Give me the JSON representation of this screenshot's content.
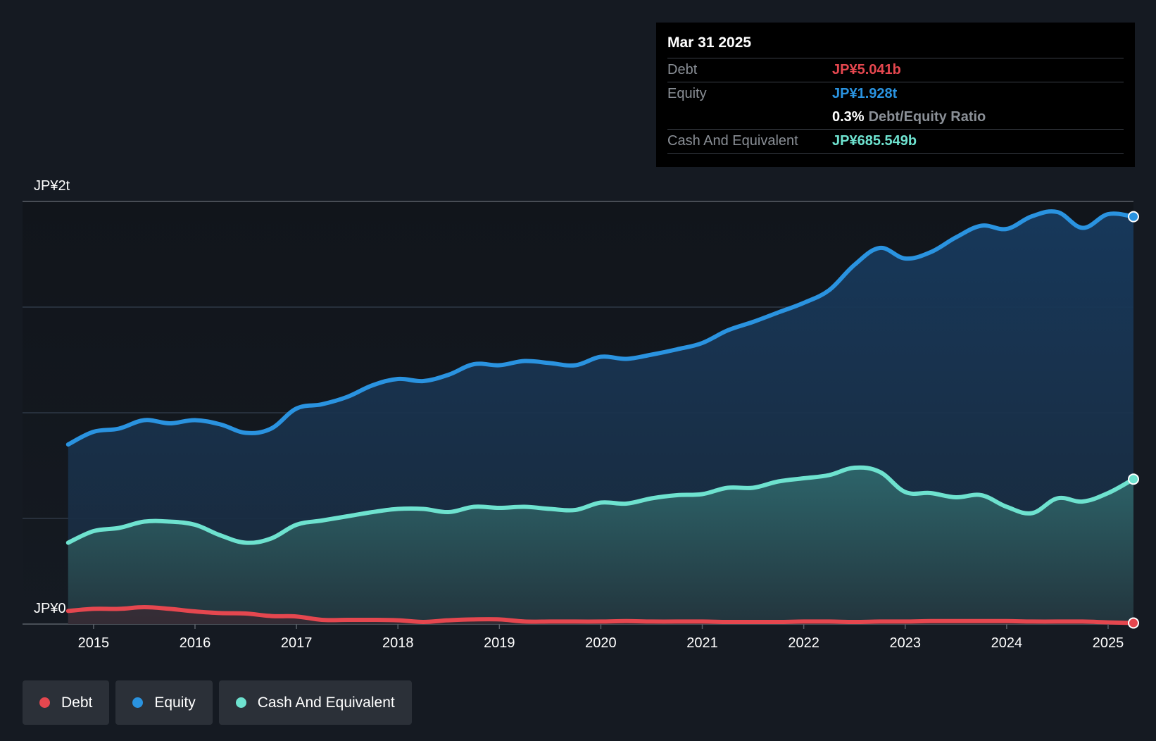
{
  "tooltip": {
    "date": "Mar 31 2025",
    "debt_label": "Debt",
    "debt_value": "JP¥5.041b",
    "equity_label": "Equity",
    "equity_value": "JP¥1.928t",
    "ratio_value": "0.3%",
    "ratio_label": "Debt/Equity Ratio",
    "cash_label": "Cash And Equivalent",
    "cash_value": "JP¥685.549b"
  },
  "legend": {
    "debt": "Debt",
    "equity": "Equity",
    "cash": "Cash And Equivalent"
  },
  "colors": {
    "debt": "#e5474f",
    "equity": "#2a93e0",
    "cash": "#6ee2cf",
    "background": "#151a22"
  },
  "chart_data": {
    "type": "area",
    "title": "",
    "ylabel_top": "JP¥2t",
    "ylabel_bottom": "JP¥0",
    "ylim": [
      0,
      2000
    ],
    "xlim": [
      2014.3,
      2025.25
    ],
    "unit": "JP¥ billions",
    "x_ticks": [
      "2015",
      "2016",
      "2017",
      "2018",
      "2019",
      "2020",
      "2021",
      "2022",
      "2023",
      "2024",
      "2025"
    ],
    "x": [
      2014.75,
      2015.0,
      2015.25,
      2015.5,
      2015.75,
      2016.0,
      2016.25,
      2016.5,
      2016.75,
      2017.0,
      2017.25,
      2017.5,
      2017.75,
      2018.0,
      2018.25,
      2018.5,
      2018.75,
      2019.0,
      2019.25,
      2019.5,
      2019.75,
      2020.0,
      2020.25,
      2020.5,
      2020.75,
      2021.0,
      2021.25,
      2021.5,
      2021.75,
      2022.0,
      2022.25,
      2022.5,
      2022.75,
      2023.0,
      2023.25,
      2023.5,
      2023.75,
      2024.0,
      2024.25,
      2024.5,
      2024.75,
      2025.0,
      2025.25
    ],
    "series": [
      {
        "name": "Equity",
        "values": [
          850,
          910,
          925,
          965,
          950,
          965,
          945,
          905,
          925,
          1020,
          1040,
          1075,
          1130,
          1160,
          1150,
          1180,
          1230,
          1225,
          1245,
          1235,
          1225,
          1265,
          1255,
          1275,
          1300,
          1330,
          1390,
          1430,
          1475,
          1520,
          1580,
          1700,
          1780,
          1730,
          1760,
          1830,
          1885,
          1870,
          1930,
          1950,
          1875,
          1940,
          1928
        ]
      },
      {
        "name": "Cash And Equivalent",
        "values": [
          385,
          440,
          455,
          485,
          485,
          470,
          420,
          385,
          405,
          470,
          490,
          510,
          530,
          545,
          545,
          530,
          555,
          550,
          555,
          545,
          540,
          575,
          570,
          595,
          610,
          615,
          645,
          645,
          675,
          690,
          705,
          740,
          720,
          625,
          620,
          600,
          610,
          555,
          525,
          595,
          580,
          620,
          686
        ]
      },
      {
        "name": "Debt",
        "values": [
          62,
          72,
          72,
          80,
          72,
          60,
          52,
          50,
          38,
          36,
          20,
          20,
          20,
          18,
          10,
          18,
          22,
          22,
          12,
          12,
          12,
          12,
          14,
          12,
          12,
          12,
          10,
          10,
          10,
          12,
          12,
          10,
          12,
          12,
          14,
          14,
          14,
          14,
          12,
          12,
          12,
          8,
          5
        ]
      }
    ],
    "grid": true,
    "legend_position": "bottom-left"
  }
}
